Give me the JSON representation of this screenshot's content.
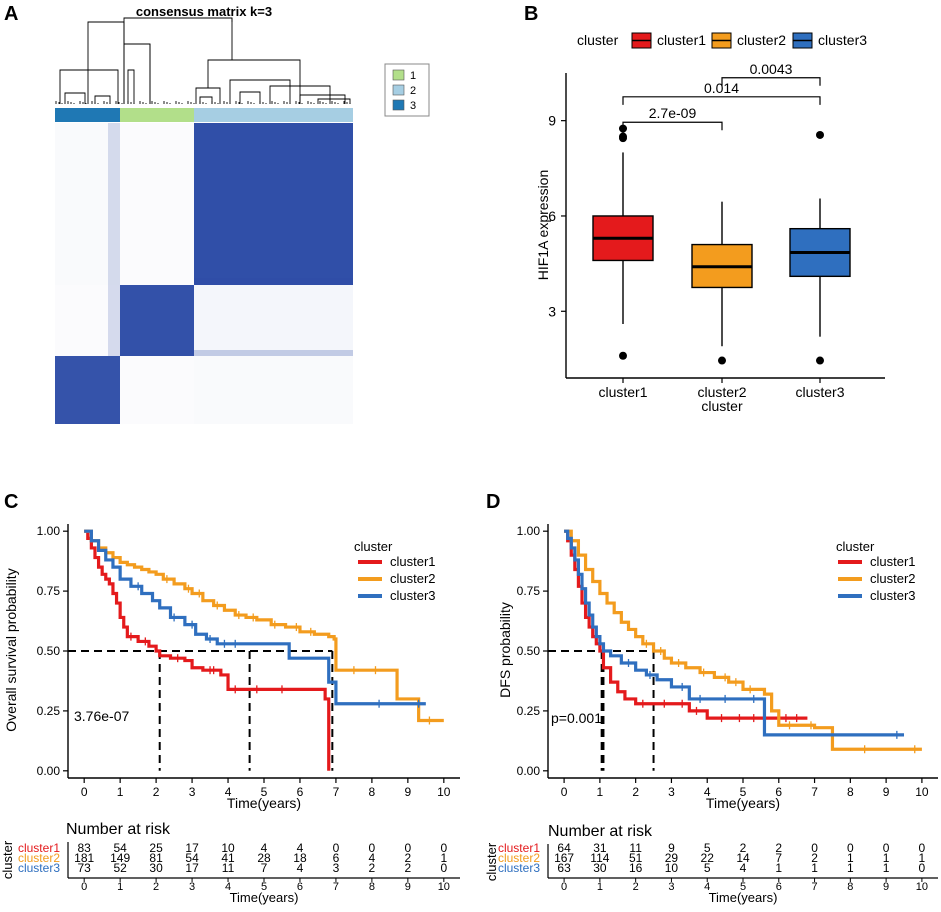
{
  "colors": {
    "heat_dark": "#2a4aa5",
    "heat_light": "#ffffff",
    "dendro": "#000000",
    "anno1": "#b2df8a",
    "anno2": "#a6cee3",
    "anno3": "#1f78b4",
    "cluster1": "#e41a1c",
    "cluster2": "#f39c1e",
    "cluster3": "#2f6fbf",
    "box1": "#e41a1c",
    "box2": "#f39c1e",
    "box3": "#2f6fbf"
  },
  "panel_labels": [
    "A",
    "B",
    "C",
    "D"
  ],
  "chart_data": [
    {
      "panel": "A",
      "type": "heatmap",
      "title": "consensus matrix k=3",
      "legend": {
        "labels": [
          "1",
          "2",
          "3"
        ],
        "placement": "right"
      },
      "column_order": [
        "3",
        "1",
        "2"
      ],
      "rows": [
        "2",
        "1",
        "3"
      ],
      "columns": [
        "3",
        "1",
        "2"
      ],
      "values": [
        [
          0.03,
          0.02,
          0.97
        ],
        [
          0.02,
          0.96,
          0.05
        ],
        [
          0.95,
          0.02,
          0.03
        ]
      ]
    },
    {
      "panel": "B",
      "type": "box",
      "title": "",
      "xlabel": "cluster",
      "ylabel": "HIF1A expression",
      "legend": {
        "title": "cluster",
        "labels": [
          "cluster1",
          "cluster2",
          "cluster3"
        ],
        "placement": "top"
      },
      "categories": [
        "cluster1",
        "cluster2",
        "cluster3"
      ],
      "ylim": [
        0.9,
        10.5
      ],
      "yticks": [
        3,
        6,
        9
      ],
      "boxes": [
        {
          "name": "cluster1",
          "q1": 4.6,
          "median": 5.3,
          "q3": 6.0,
          "whisker_low": 2.6,
          "whisker_high": 8.0,
          "outliers": [
            8.75,
            8.5,
            8.45,
            1.6
          ]
        },
        {
          "name": "cluster2",
          "q1": 3.75,
          "median": 4.4,
          "q3": 5.1,
          "whisker_low": 1.9,
          "whisker_high": 6.45,
          "outliers": [
            1.45
          ]
        },
        {
          "name": "cluster3",
          "q1": 4.1,
          "median": 4.85,
          "q3": 5.6,
          "whisker_low": 2.2,
          "whisker_high": 6.55,
          "outliers": [
            8.55,
            1.45
          ]
        }
      ],
      "comparisons": [
        {
          "from": "cluster1",
          "to": "cluster2",
          "label": "2.7e-09",
          "y": 8.95
        },
        {
          "from": "cluster1",
          "to": "cluster3",
          "label": "0.014",
          "y": 9.75
        },
        {
          "from": "cluster2",
          "to": "cluster3",
          "label": "0.0043",
          "y": 10.35
        }
      ]
    },
    {
      "panel": "C",
      "type": "line",
      "title": "",
      "xlabel": "Time(years)",
      "ylabel": "Overall survival probability",
      "xlim": [
        -0.45,
        10.45
      ],
      "ylim": [
        -0.03,
        1.03
      ],
      "xticks": [
        0,
        1,
        2,
        3,
        4,
        5,
        6,
        7,
        8,
        9,
        10
      ],
      "yticks": [
        "0.00",
        "0.25",
        "0.50",
        "0.75",
        "1.00"
      ],
      "legend": {
        "title": "cluster",
        "labels": [
          "cluster1",
          "cluster2",
          "cluster3"
        ],
        "placement": "right"
      },
      "pvalue": "3.76e-07",
      "median_lines": [
        2.1,
        4.6,
        6.9
      ],
      "series": [
        {
          "name": "cluster1",
          "x": [
            0,
            0.1,
            0.2,
            0.3,
            0.4,
            0.5,
            0.6,
            0.7,
            0.8,
            0.9,
            1.0,
            1.1,
            1.2,
            1.5,
            1.8,
            2.0,
            2.1,
            2.4,
            2.8,
            3.0,
            3.3,
            3.8,
            4.0,
            4.5,
            5.0,
            6.5,
            6.7,
            6.8,
            6.8
          ],
          "y": [
            1.0,
            0.97,
            0.93,
            0.89,
            0.85,
            0.82,
            0.8,
            0.78,
            0.74,
            0.7,
            0.64,
            0.6,
            0.56,
            0.54,
            0.52,
            0.5,
            0.48,
            0.47,
            0.46,
            0.43,
            0.42,
            0.4,
            0.34,
            0.34,
            0.34,
            0.34,
            0.3,
            0.3,
            0.0
          ],
          "censor": [
            1.3,
            1.7,
            2.6,
            3.5,
            3.6,
            4.2,
            4.8,
            5.5
          ]
        },
        {
          "name": "cluster2",
          "x": [
            0,
            0.2,
            0.4,
            0.6,
            0.8,
            1.0,
            1.2,
            1.4,
            1.6,
            1.8,
            2.0,
            2.2,
            2.5,
            2.8,
            3.0,
            3.3,
            3.6,
            3.9,
            4.2,
            4.5,
            4.8,
            5.2,
            5.6,
            6.0,
            6.4,
            6.8,
            6.95,
            7.0,
            8.5,
            8.7,
            9.0,
            9.3,
            10.0
          ],
          "y": [
            1.0,
            0.96,
            0.93,
            0.91,
            0.89,
            0.87,
            0.86,
            0.85,
            0.84,
            0.83,
            0.82,
            0.8,
            0.78,
            0.76,
            0.74,
            0.71,
            0.69,
            0.67,
            0.65,
            0.64,
            0.63,
            0.61,
            0.6,
            0.58,
            0.57,
            0.56,
            0.55,
            0.42,
            0.42,
            0.3,
            0.3,
            0.21,
            0.21
          ],
          "censor": [
            2.3,
            2.9,
            3.2,
            3.7,
            4.3,
            4.7,
            5.3,
            5.9,
            6.3,
            7.5,
            8.1,
            9.6
          ]
        },
        {
          "name": "cluster3",
          "x": [
            0,
            0.2,
            0.4,
            0.6,
            0.8,
            1.0,
            1.3,
            1.6,
            1.9,
            2.1,
            2.4,
            2.8,
            3.1,
            3.4,
            3.7,
            4.6,
            5.7,
            6.8,
            7.0,
            9.5
          ],
          "y": [
            1.0,
            0.96,
            0.92,
            0.88,
            0.85,
            0.8,
            0.77,
            0.74,
            0.71,
            0.68,
            0.64,
            0.61,
            0.57,
            0.55,
            0.53,
            0.53,
            0.47,
            0.37,
            0.28,
            0.28
          ],
          "censor": [
            1.5,
            2.5,
            3.0,
            3.5,
            3.9,
            4.2,
            8.2,
            9.3
          ]
        }
      ],
      "risk_table": {
        "title": "Number at risk",
        "ylabel": "cluster",
        "xlabel": "Time(years)",
        "times": [
          "0",
          "1",
          "2",
          "3",
          "4",
          "5",
          "6",
          "7",
          "8",
          "9",
          "10"
        ],
        "rows": [
          {
            "name": "cluster1",
            "counts": [
              "83",
              "54",
              "25",
              "17",
              "10",
              "4",
              "4",
              "0",
              "0",
              "0",
              "0"
            ]
          },
          {
            "name": "cluster2",
            "counts": [
              "181",
              "149",
              "81",
              "54",
              "41",
              "28",
              "18",
              "6",
              "4",
              "2",
              "1"
            ]
          },
          {
            "name": "cluster3",
            "counts": [
              "73",
              "52",
              "30",
              "17",
              "11",
              "7",
              "4",
              "3",
              "2",
              "2",
              "0"
            ]
          }
        ]
      }
    },
    {
      "panel": "D",
      "type": "line",
      "title": "",
      "xlabel": "Time(years)",
      "ylabel": "DFS probability",
      "xlim": [
        -0.45,
        10.45
      ],
      "ylim": [
        -0.03,
        1.03
      ],
      "xticks": [
        0,
        1,
        2,
        3,
        4,
        5,
        6,
        7,
        8,
        9,
        10
      ],
      "yticks": [
        "0.00",
        "0.25",
        "0.50",
        "0.75",
        "1.00"
      ],
      "legend": {
        "title": "cluster",
        "labels": [
          "cluster1",
          "cluster2",
          "cluster3"
        ],
        "placement": "right"
      },
      "pvalue": "p=0.001",
      "median_lines": [
        1.05,
        1.1,
        2.5
      ],
      "series": [
        {
          "name": "cluster1",
          "x": [
            0,
            0.1,
            0.2,
            0.3,
            0.4,
            0.5,
            0.6,
            0.7,
            0.8,
            0.9,
            1.0,
            1.1,
            1.3,
            1.5,
            1.7,
            2.0,
            2.5,
            3.0,
            3.5,
            4.0,
            5.5,
            6.8
          ],
          "y": [
            1.0,
            0.96,
            0.9,
            0.84,
            0.77,
            0.7,
            0.64,
            0.6,
            0.56,
            0.53,
            0.5,
            0.43,
            0.37,
            0.33,
            0.3,
            0.28,
            0.28,
            0.28,
            0.25,
            0.22,
            0.22,
            0.22
          ],
          "censor": [
            2.2,
            2.8,
            3.3,
            3.7,
            4.4,
            4.9,
            5.3,
            6.2,
            6.5
          ]
        },
        {
          "name": "cluster2",
          "x": [
            0,
            0.2,
            0.4,
            0.6,
            0.8,
            1.0,
            1.2,
            1.4,
            1.6,
            1.8,
            2.0,
            2.2,
            2.5,
            2.8,
            3.0,
            3.4,
            3.8,
            4.2,
            4.6,
            5.0,
            5.6,
            5.8,
            6.0,
            7.0,
            7.5,
            10.0
          ],
          "y": [
            1.0,
            0.96,
            0.9,
            0.84,
            0.79,
            0.74,
            0.7,
            0.66,
            0.62,
            0.59,
            0.56,
            0.53,
            0.5,
            0.47,
            0.45,
            0.43,
            0.41,
            0.39,
            0.37,
            0.34,
            0.32,
            0.25,
            0.19,
            0.18,
            0.09,
            0.09
          ],
          "censor": [
            2.3,
            2.7,
            3.2,
            3.9,
            4.5,
            4.8,
            5.2,
            6.3,
            6.9,
            8.4,
            9.8
          ]
        },
        {
          "name": "cluster3",
          "x": [
            0,
            0.1,
            0.2,
            0.3,
            0.4,
            0.5,
            0.6,
            0.7,
            0.8,
            0.9,
            1.0,
            1.1,
            1.3,
            1.6,
            2.0,
            2.3,
            2.6,
            3.0,
            3.5,
            4.0,
            5.0,
            5.6,
            7.0,
            9.5
          ],
          "y": [
            1.0,
            0.97,
            0.93,
            0.88,
            0.82,
            0.76,
            0.7,
            0.65,
            0.6,
            0.56,
            0.53,
            0.5,
            0.48,
            0.45,
            0.42,
            0.4,
            0.38,
            0.35,
            0.3,
            0.3,
            0.3,
            0.15,
            0.15,
            0.15
          ],
          "censor": [
            1.8,
            2.4,
            3.3,
            3.8,
            4.5,
            5.3,
            9.3
          ]
        }
      ],
      "risk_table": {
        "title": "Number at risk",
        "ylabel": "cluster",
        "xlabel": "Time(years)",
        "times": [
          "0",
          "1",
          "2",
          "3",
          "4",
          "5",
          "6",
          "7",
          "8",
          "9",
          "10"
        ],
        "rows": [
          {
            "name": "cluster1",
            "counts": [
              "64",
              "31",
              "11",
              "9",
              "5",
              "2",
              "2",
              "0",
              "0",
              "0",
              "0"
            ]
          },
          {
            "name": "cluster2",
            "counts": [
              "167",
              "114",
              "51",
              "29",
              "22",
              "14",
              "7",
              "2",
              "1",
              "1",
              "1"
            ]
          },
          {
            "name": "cluster3",
            "counts": [
              "63",
              "30",
              "16",
              "10",
              "5",
              "4",
              "1",
              "1",
              "1",
              "1",
              "0"
            ]
          }
        ]
      }
    }
  ]
}
